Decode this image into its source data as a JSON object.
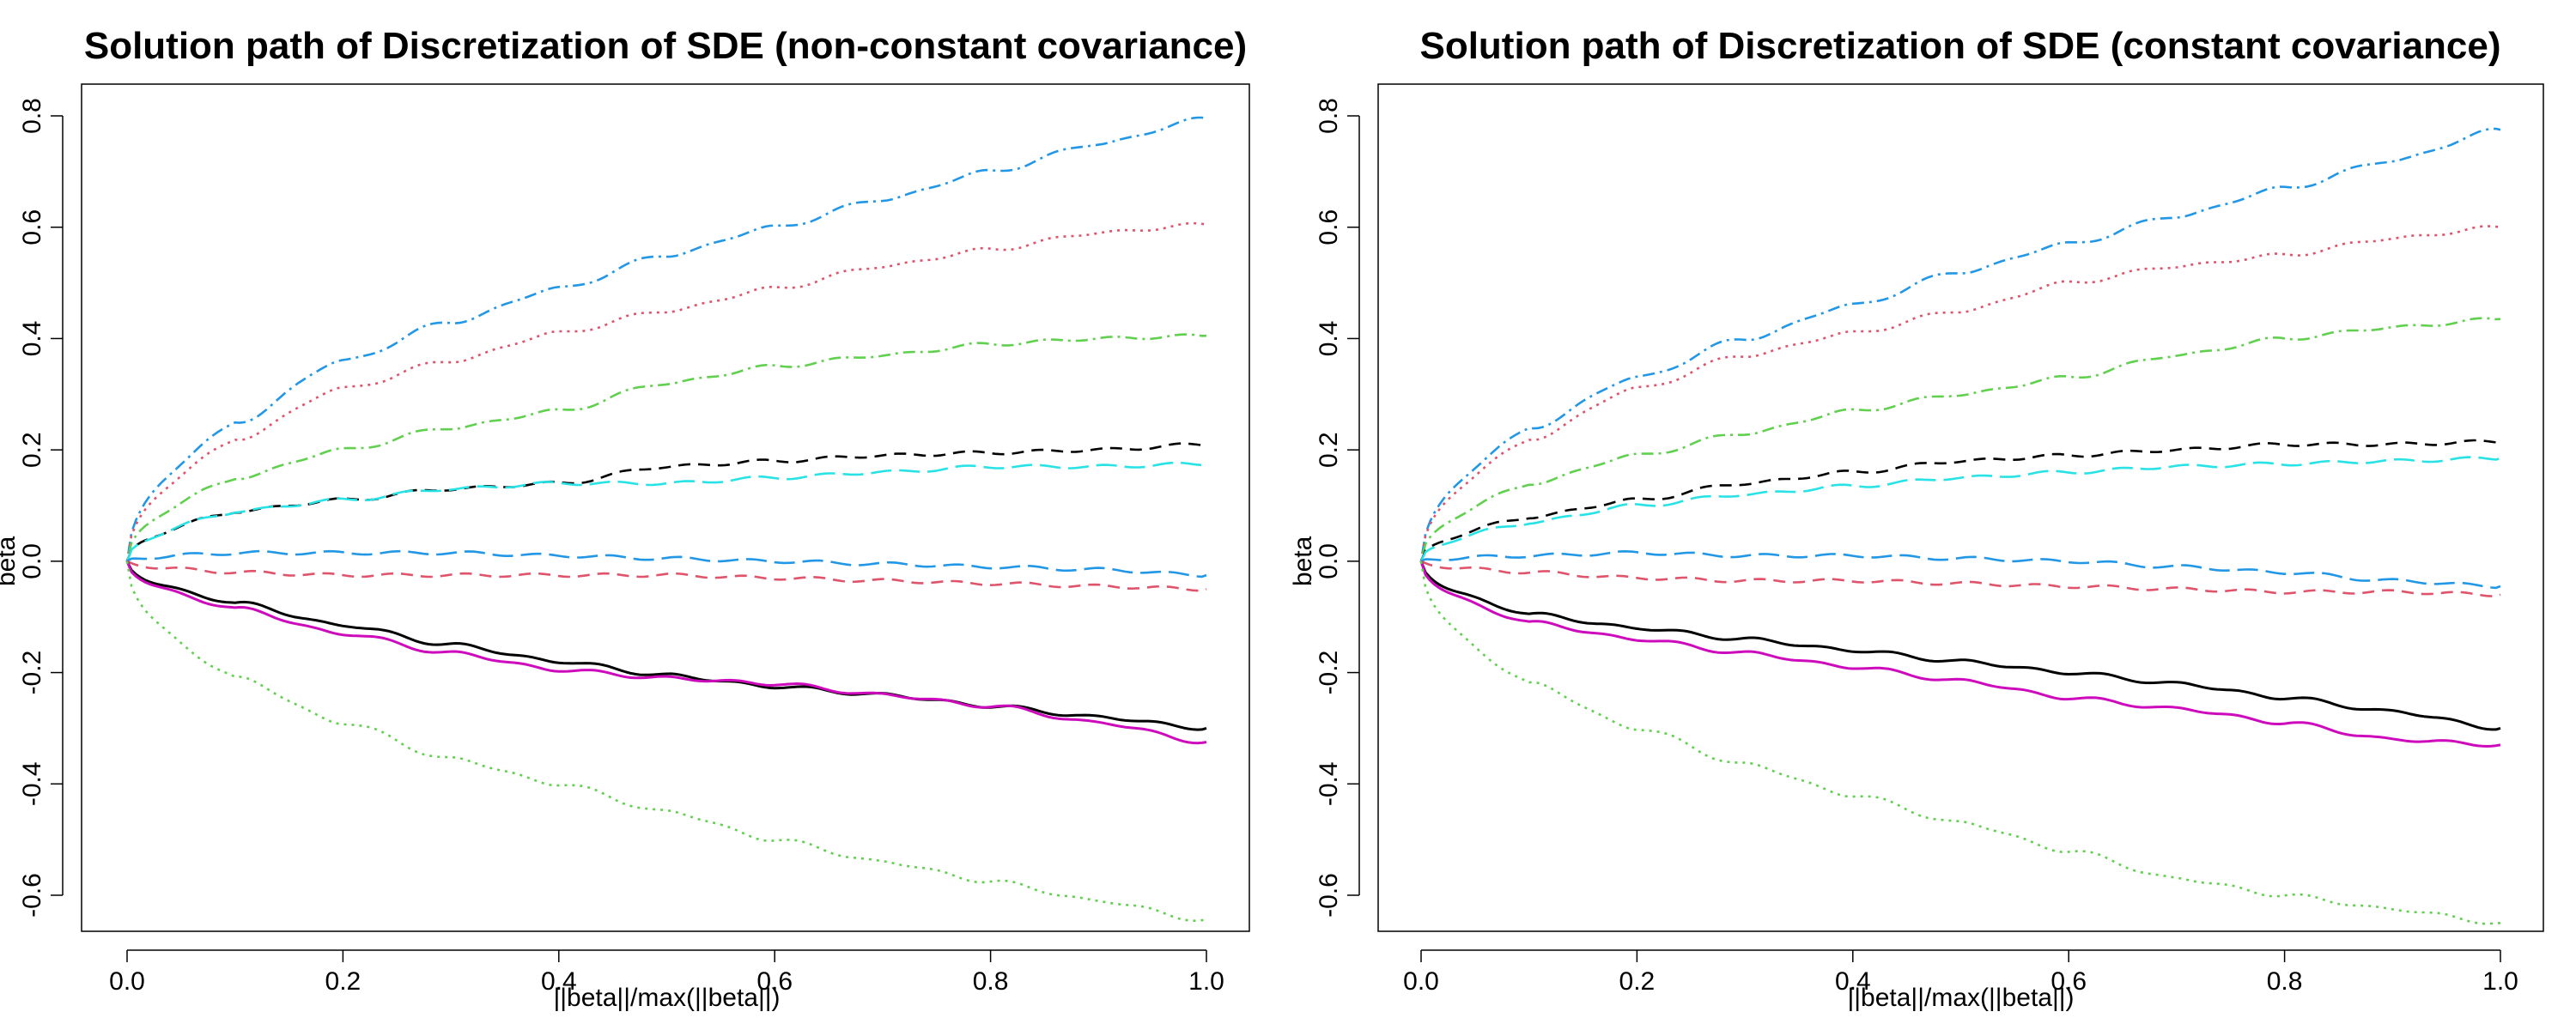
{
  "chart_data": [
    {
      "type": "line",
      "title": "Solution path of Discretization of SDE (non-constant covariance)",
      "xlabel": "||beta||/max(||beta||)",
      "ylabel": "beta",
      "xlim": [
        0.0,
        1.0
      ],
      "ylim": [
        -0.7,
        0.85
      ],
      "xticks": [
        "0.0",
        "0.2",
        "0.4",
        "0.6",
        "0.8",
        "1.0"
      ],
      "yticks": [
        "-0.6",
        "-0.4",
        "-0.2",
        "0.0",
        "0.2",
        "0.4",
        "0.6",
        "0.8"
      ],
      "grid": false,
      "legend": "none",
      "x": [
        0.0,
        0.1,
        0.2,
        0.3,
        0.4,
        0.5,
        0.6,
        0.7,
        0.8,
        0.9,
        1.0
      ],
      "series": [
        {
          "color": "#2297E6",
          "dash": "dotdash",
          "values": [
            0.0,
            0.25,
            0.36,
            0.43,
            0.49,
            0.55,
            0.6,
            0.65,
            0.7,
            0.75,
            0.795
          ]
        },
        {
          "color": "#DF536B",
          "dash": "dotted",
          "values": [
            0.0,
            0.22,
            0.31,
            0.36,
            0.41,
            0.45,
            0.49,
            0.53,
            0.56,
            0.59,
            0.605
          ]
        },
        {
          "color": "#61D04F",
          "dash": "dotdash",
          "values": [
            0.0,
            0.15,
            0.2,
            0.24,
            0.27,
            0.32,
            0.35,
            0.37,
            0.39,
            0.4,
            0.405
          ]
        },
        {
          "color": "#000000",
          "dash": "dashed",
          "values": [
            0.0,
            0.09,
            0.11,
            0.13,
            0.14,
            0.17,
            0.18,
            0.19,
            0.195,
            0.2,
            0.21
          ]
        },
        {
          "color": "#28E2E5",
          "dash": "longdash",
          "values": [
            0.0,
            0.09,
            0.11,
            0.13,
            0.14,
            0.14,
            0.15,
            0.16,
            0.17,
            0.17,
            0.175
          ]
        },
        {
          "color": "#2297E6",
          "dash": "longdash",
          "values": [
            0.0,
            0.015,
            0.015,
            0.015,
            0.01,
            0.005,
            0.0,
            -0.005,
            -0.01,
            -0.015,
            -0.025
          ]
        },
        {
          "color": "#DF536B",
          "dash": "dashed",
          "values": [
            0.0,
            -0.02,
            -0.025,
            -0.025,
            -0.025,
            -0.025,
            -0.03,
            -0.035,
            -0.04,
            -0.045,
            -0.05
          ]
        },
        {
          "color": "#000000",
          "dash": "solid",
          "values": [
            0.0,
            -0.075,
            -0.115,
            -0.15,
            -0.18,
            -0.205,
            -0.225,
            -0.24,
            -0.26,
            -0.28,
            -0.3
          ]
        },
        {
          "color": "#CD0BBC",
          "dash": "solid",
          "values": [
            0.0,
            -0.085,
            -0.13,
            -0.165,
            -0.195,
            -0.21,
            -0.22,
            -0.24,
            -0.26,
            -0.29,
            -0.325
          ]
        },
        {
          "color": "#61D04F",
          "dash": "dotted",
          "values": [
            0.0,
            -0.21,
            -0.29,
            -0.355,
            -0.4,
            -0.45,
            -0.5,
            -0.54,
            -0.575,
            -0.61,
            -0.645
          ]
        }
      ]
    },
    {
      "type": "line",
      "title": "Solution path of Discretization of SDE (constant covariance)",
      "xlabel": "||beta||/max(||beta||)",
      "ylabel": "beta",
      "xlim": [
        0.0,
        1.0
      ],
      "ylim": [
        -0.7,
        0.85
      ],
      "xticks": [
        "0.0",
        "0.2",
        "0.4",
        "0.6",
        "0.8",
        "1.0"
      ],
      "yticks": [
        "-0.6",
        "-0.4",
        "-0.2",
        "0.0",
        "0.2",
        "0.4",
        "0.6",
        "0.8"
      ],
      "grid": false,
      "legend": "none",
      "x": [
        0.0,
        0.1,
        0.2,
        0.3,
        0.4,
        0.5,
        0.6,
        0.7,
        0.8,
        0.9,
        1.0
      ],
      "series": [
        {
          "color": "#2297E6",
          "dash": "dotdash",
          "values": [
            0.0,
            0.24,
            0.33,
            0.4,
            0.46,
            0.52,
            0.57,
            0.62,
            0.67,
            0.72,
            0.775
          ]
        },
        {
          "color": "#DF536B",
          "dash": "dotted",
          "values": [
            0.0,
            0.22,
            0.31,
            0.37,
            0.41,
            0.45,
            0.5,
            0.53,
            0.55,
            0.58,
            0.6
          ]
        },
        {
          "color": "#61D04F",
          "dash": "dotdash",
          "values": [
            0.0,
            0.14,
            0.19,
            0.23,
            0.27,
            0.3,
            0.33,
            0.37,
            0.4,
            0.42,
            0.435
          ]
        },
        {
          "color": "#000000",
          "dash": "dashed",
          "values": [
            0.0,
            0.08,
            0.11,
            0.14,
            0.16,
            0.18,
            0.19,
            0.2,
            0.21,
            0.21,
            0.215
          ]
        },
        {
          "color": "#28E2E5",
          "dash": "longdash",
          "values": [
            0.0,
            0.07,
            0.1,
            0.12,
            0.135,
            0.15,
            0.16,
            0.17,
            0.175,
            0.18,
            0.185
          ]
        },
        {
          "color": "#2297E6",
          "dash": "longdash",
          "values": [
            0.0,
            0.01,
            0.015,
            0.01,
            0.01,
            0.005,
            0.0,
            -0.01,
            -0.02,
            -0.035,
            -0.045
          ]
        },
        {
          "color": "#DF536B",
          "dash": "dashed",
          "values": [
            0.0,
            -0.02,
            -0.03,
            -0.035,
            -0.035,
            -0.04,
            -0.045,
            -0.05,
            -0.055,
            -0.055,
            -0.06
          ]
        },
        {
          "color": "#000000",
          "dash": "solid",
          "values": [
            0.0,
            -0.095,
            -0.12,
            -0.14,
            -0.16,
            -0.18,
            -0.2,
            -0.22,
            -0.245,
            -0.27,
            -0.3
          ]
        },
        {
          "color": "#CD0BBC",
          "dash": "solid",
          "values": [
            0.0,
            -0.11,
            -0.14,
            -0.165,
            -0.19,
            -0.215,
            -0.245,
            -0.265,
            -0.29,
            -0.32,
            -0.33
          ]
        },
        {
          "color": "#61D04F",
          "dash": "dotted",
          "values": [
            0.0,
            -0.22,
            -0.3,
            -0.365,
            -0.42,
            -0.47,
            -0.52,
            -0.57,
            -0.6,
            -0.625,
            -0.65
          ]
        }
      ]
    }
  ]
}
